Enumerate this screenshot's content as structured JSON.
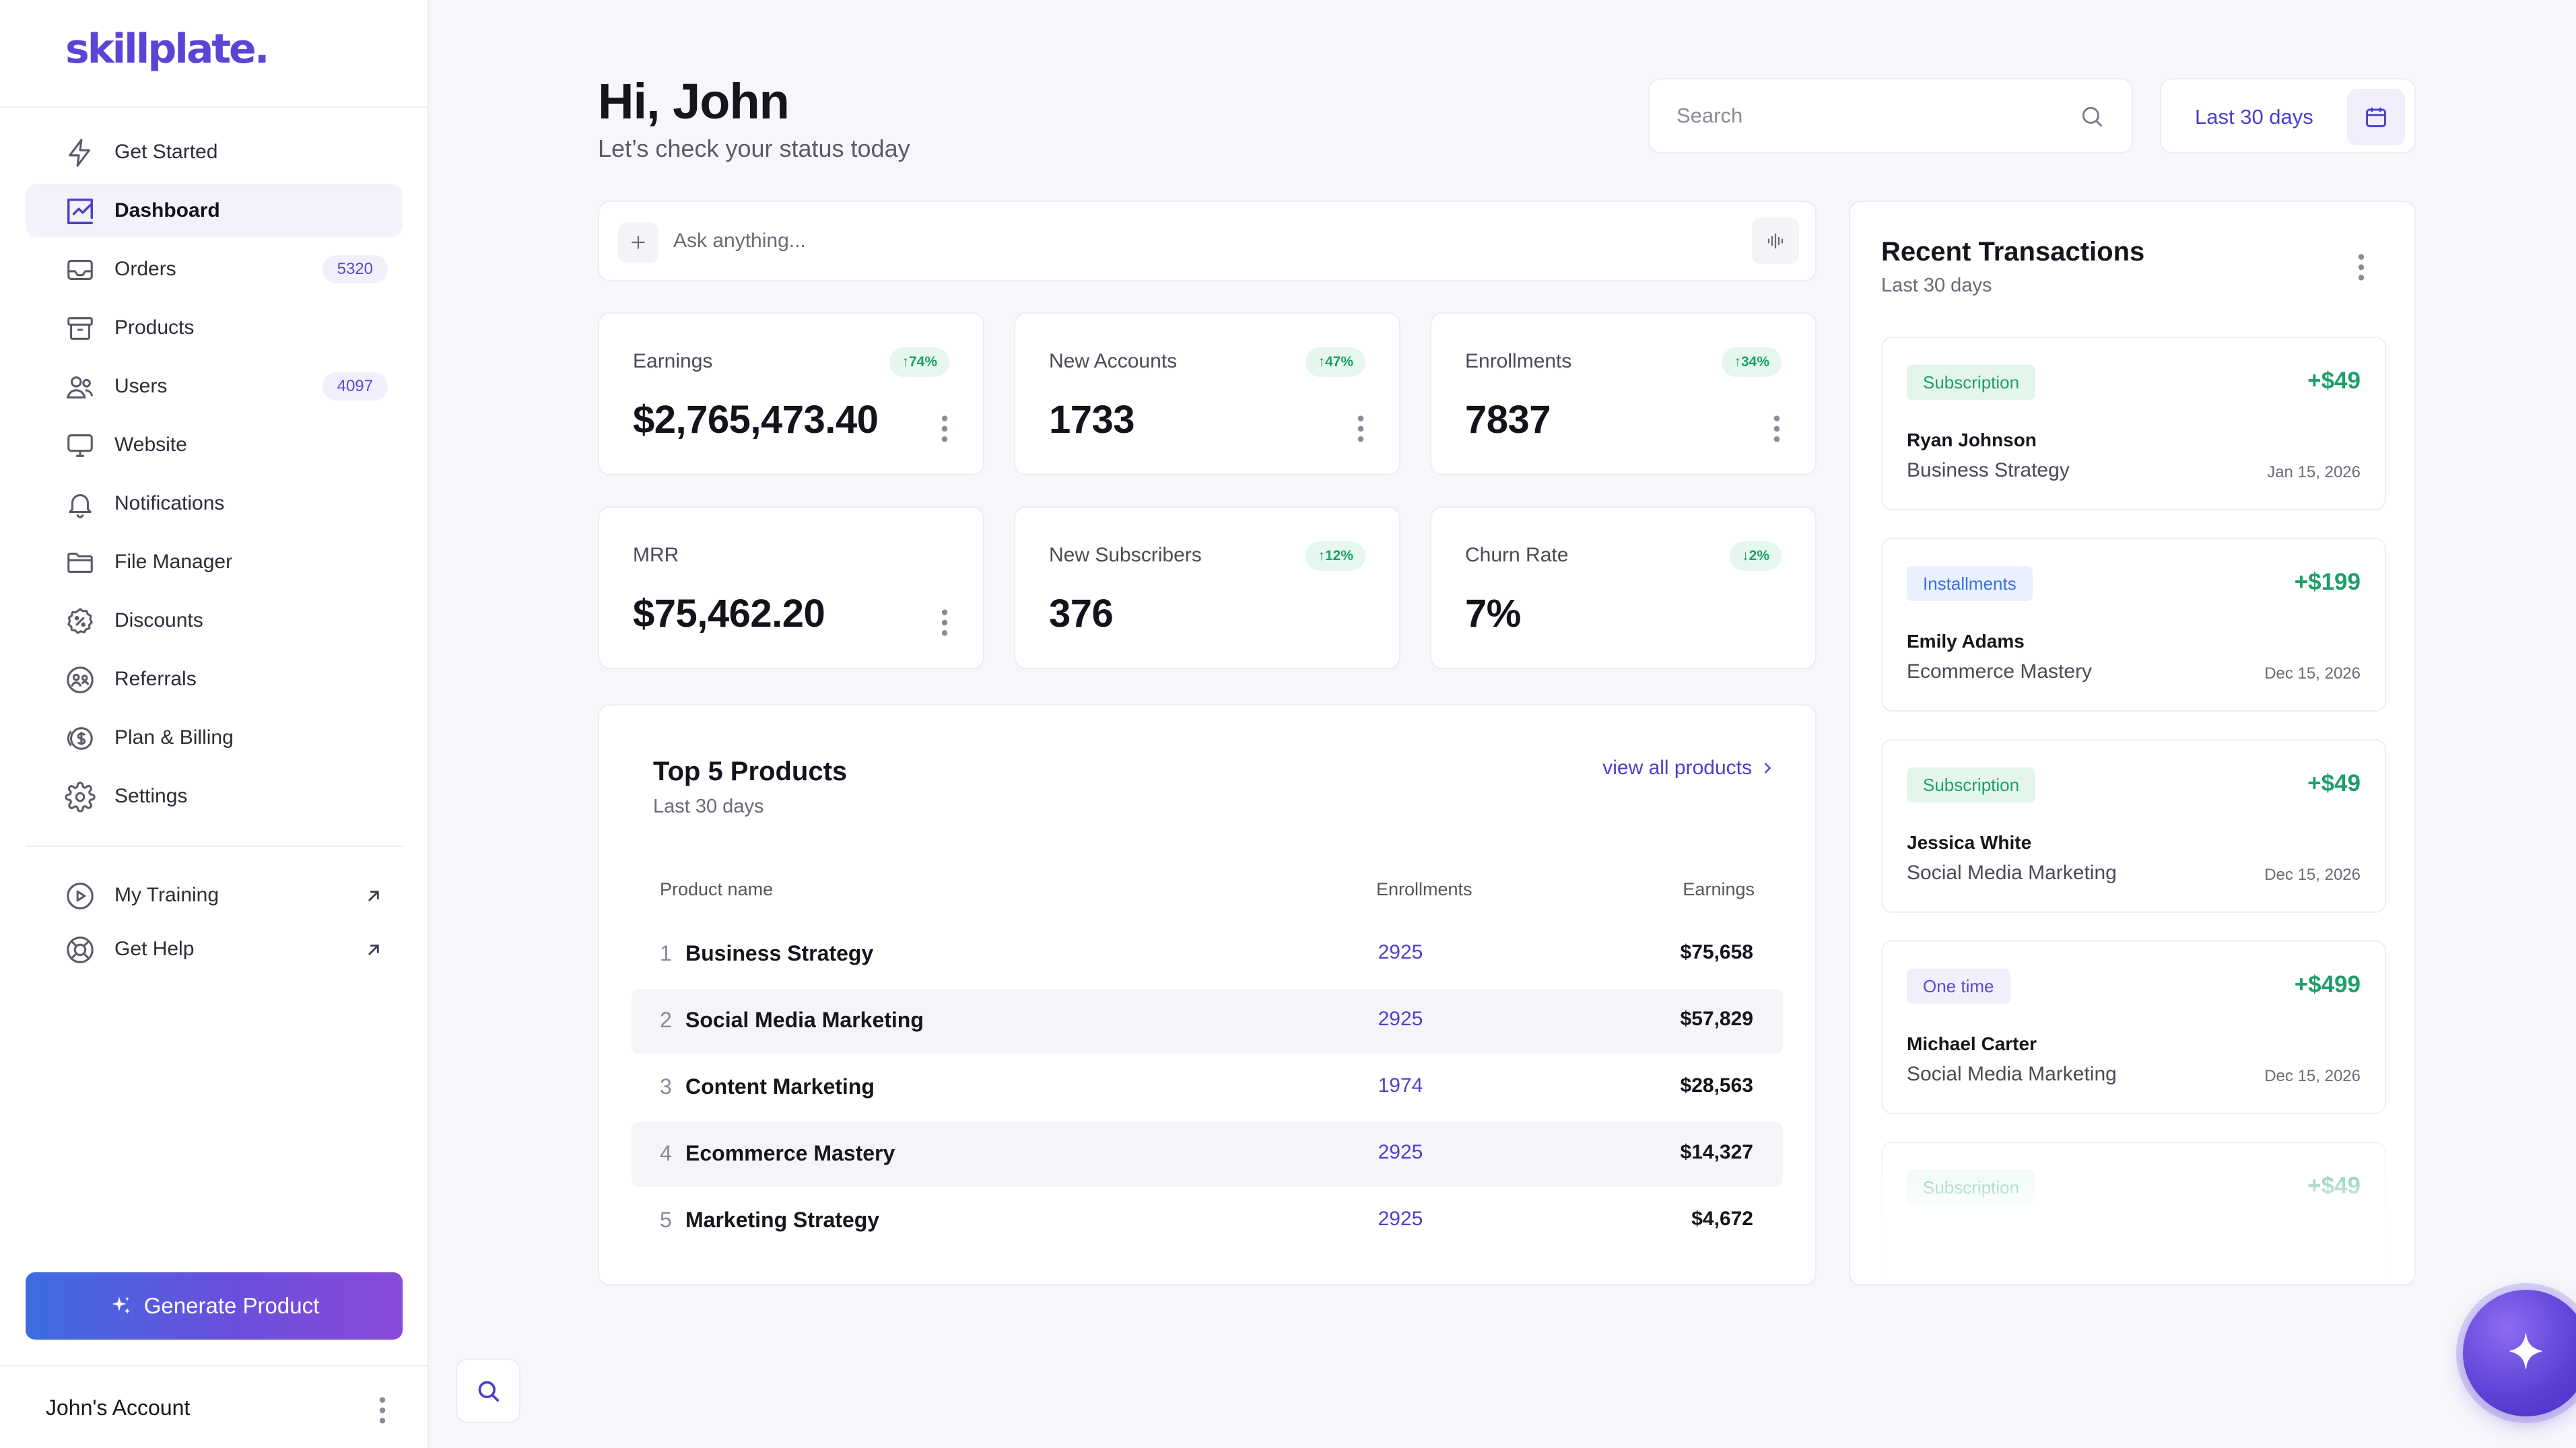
{
  "brand": {
    "logo": "skillplate."
  },
  "sidebar": {
    "items": [
      {
        "label": "Get Started",
        "icon": "bolt-icon"
      },
      {
        "label": "Dashboard",
        "icon": "chart-icon",
        "active": true
      },
      {
        "label": "Orders",
        "icon": "inbox-icon",
        "badge": "5320"
      },
      {
        "label": "Products",
        "icon": "archive-icon"
      },
      {
        "label": "Users",
        "icon": "users-icon",
        "badge": "4097"
      },
      {
        "label": "Website",
        "icon": "monitor-icon"
      },
      {
        "label": "Notifications",
        "icon": "bell-icon"
      },
      {
        "label": "File Manager",
        "icon": "folder-icon"
      },
      {
        "label": "Discounts",
        "icon": "discount-icon"
      },
      {
        "label": "Referrals",
        "icon": "referrals-icon"
      },
      {
        "label": "Plan & Billing",
        "icon": "billing-icon"
      },
      {
        "label": "Settings",
        "icon": "gear-icon"
      }
    ],
    "secondary": [
      {
        "label": "My Training",
        "icon": "play-icon"
      },
      {
        "label": "Get Help",
        "icon": "lifebuoy-icon"
      }
    ],
    "generate_label": "Generate Product",
    "account_name": "John's Account"
  },
  "header": {
    "greeting": "Hi, John",
    "subtitle": "Let’s check your status today",
    "search_placeholder": "Search",
    "date_range": "Last 30 days"
  },
  "ask": {
    "placeholder": "Ask anything..."
  },
  "stats": [
    {
      "title": "Earnings",
      "value": "$2,765,473.40",
      "trend": "74%",
      "trend_dir": "up"
    },
    {
      "title": "New Accounts",
      "value": "1733",
      "trend": "47%",
      "trend_dir": "up"
    },
    {
      "title": "Enrollments",
      "value": "7837",
      "trend": "34%",
      "trend_dir": "up"
    },
    {
      "title": "MRR",
      "value": "$75,462.20"
    },
    {
      "title": "New Subscribers",
      "value": "376",
      "trend": "12%",
      "trend_dir": "up"
    },
    {
      "title": "Churn Rate",
      "value": "7%",
      "trend": "2%",
      "trend_dir": "down"
    }
  ],
  "top_products": {
    "title": "Top 5 Products",
    "subtitle": "Last 30 days",
    "view_all": "view all products",
    "columns": [
      "Product name",
      "Enrollments",
      "Earnings"
    ],
    "rows": [
      {
        "rank": "1",
        "name": "Business Strategy",
        "enrollments": "2925",
        "earnings": "$75,658"
      },
      {
        "rank": "2",
        "name": "Social Media Marketing",
        "enrollments": "2925",
        "earnings": "$57,829"
      },
      {
        "rank": "3",
        "name": "Content Marketing",
        "enrollments": "1974",
        "earnings": "$28,563"
      },
      {
        "rank": "4",
        "name": "Ecommerce Mastery",
        "enrollments": "2925",
        "earnings": "$14,327"
      },
      {
        "rank": "5",
        "name": "Marketing Strategy",
        "enrollments": "2925",
        "earnings": "$4,672"
      }
    ]
  },
  "transactions": {
    "title": "Recent Transactions",
    "subtitle": "Last 30 days",
    "items": [
      {
        "type": "Subscription",
        "amount": "+$49",
        "name": "Ryan Johnson",
        "product": "Business Strategy",
        "date": "Jan 15, 2026"
      },
      {
        "type": "Installments",
        "amount": "+$199",
        "name": "Emily Adams",
        "product": "Ecommerce Mastery",
        "date": "Dec 15, 2026"
      },
      {
        "type": "Subscription",
        "amount": "+$49",
        "name": "Jessica White",
        "product": "Social Media Marketing",
        "date": "Dec 15, 2026"
      },
      {
        "type": "One time",
        "amount": "+$499",
        "name": "Michael Carter",
        "product": "Social Media Marketing",
        "date": "Dec 15, 2026"
      },
      {
        "type": "Subscription",
        "amount": "+$49",
        "name": "",
        "product": "",
        "date": ""
      }
    ]
  },
  "colors": {
    "accent": "#5b45d6",
    "positive": "#1e9e6a",
    "link": "#4a3fc9"
  }
}
